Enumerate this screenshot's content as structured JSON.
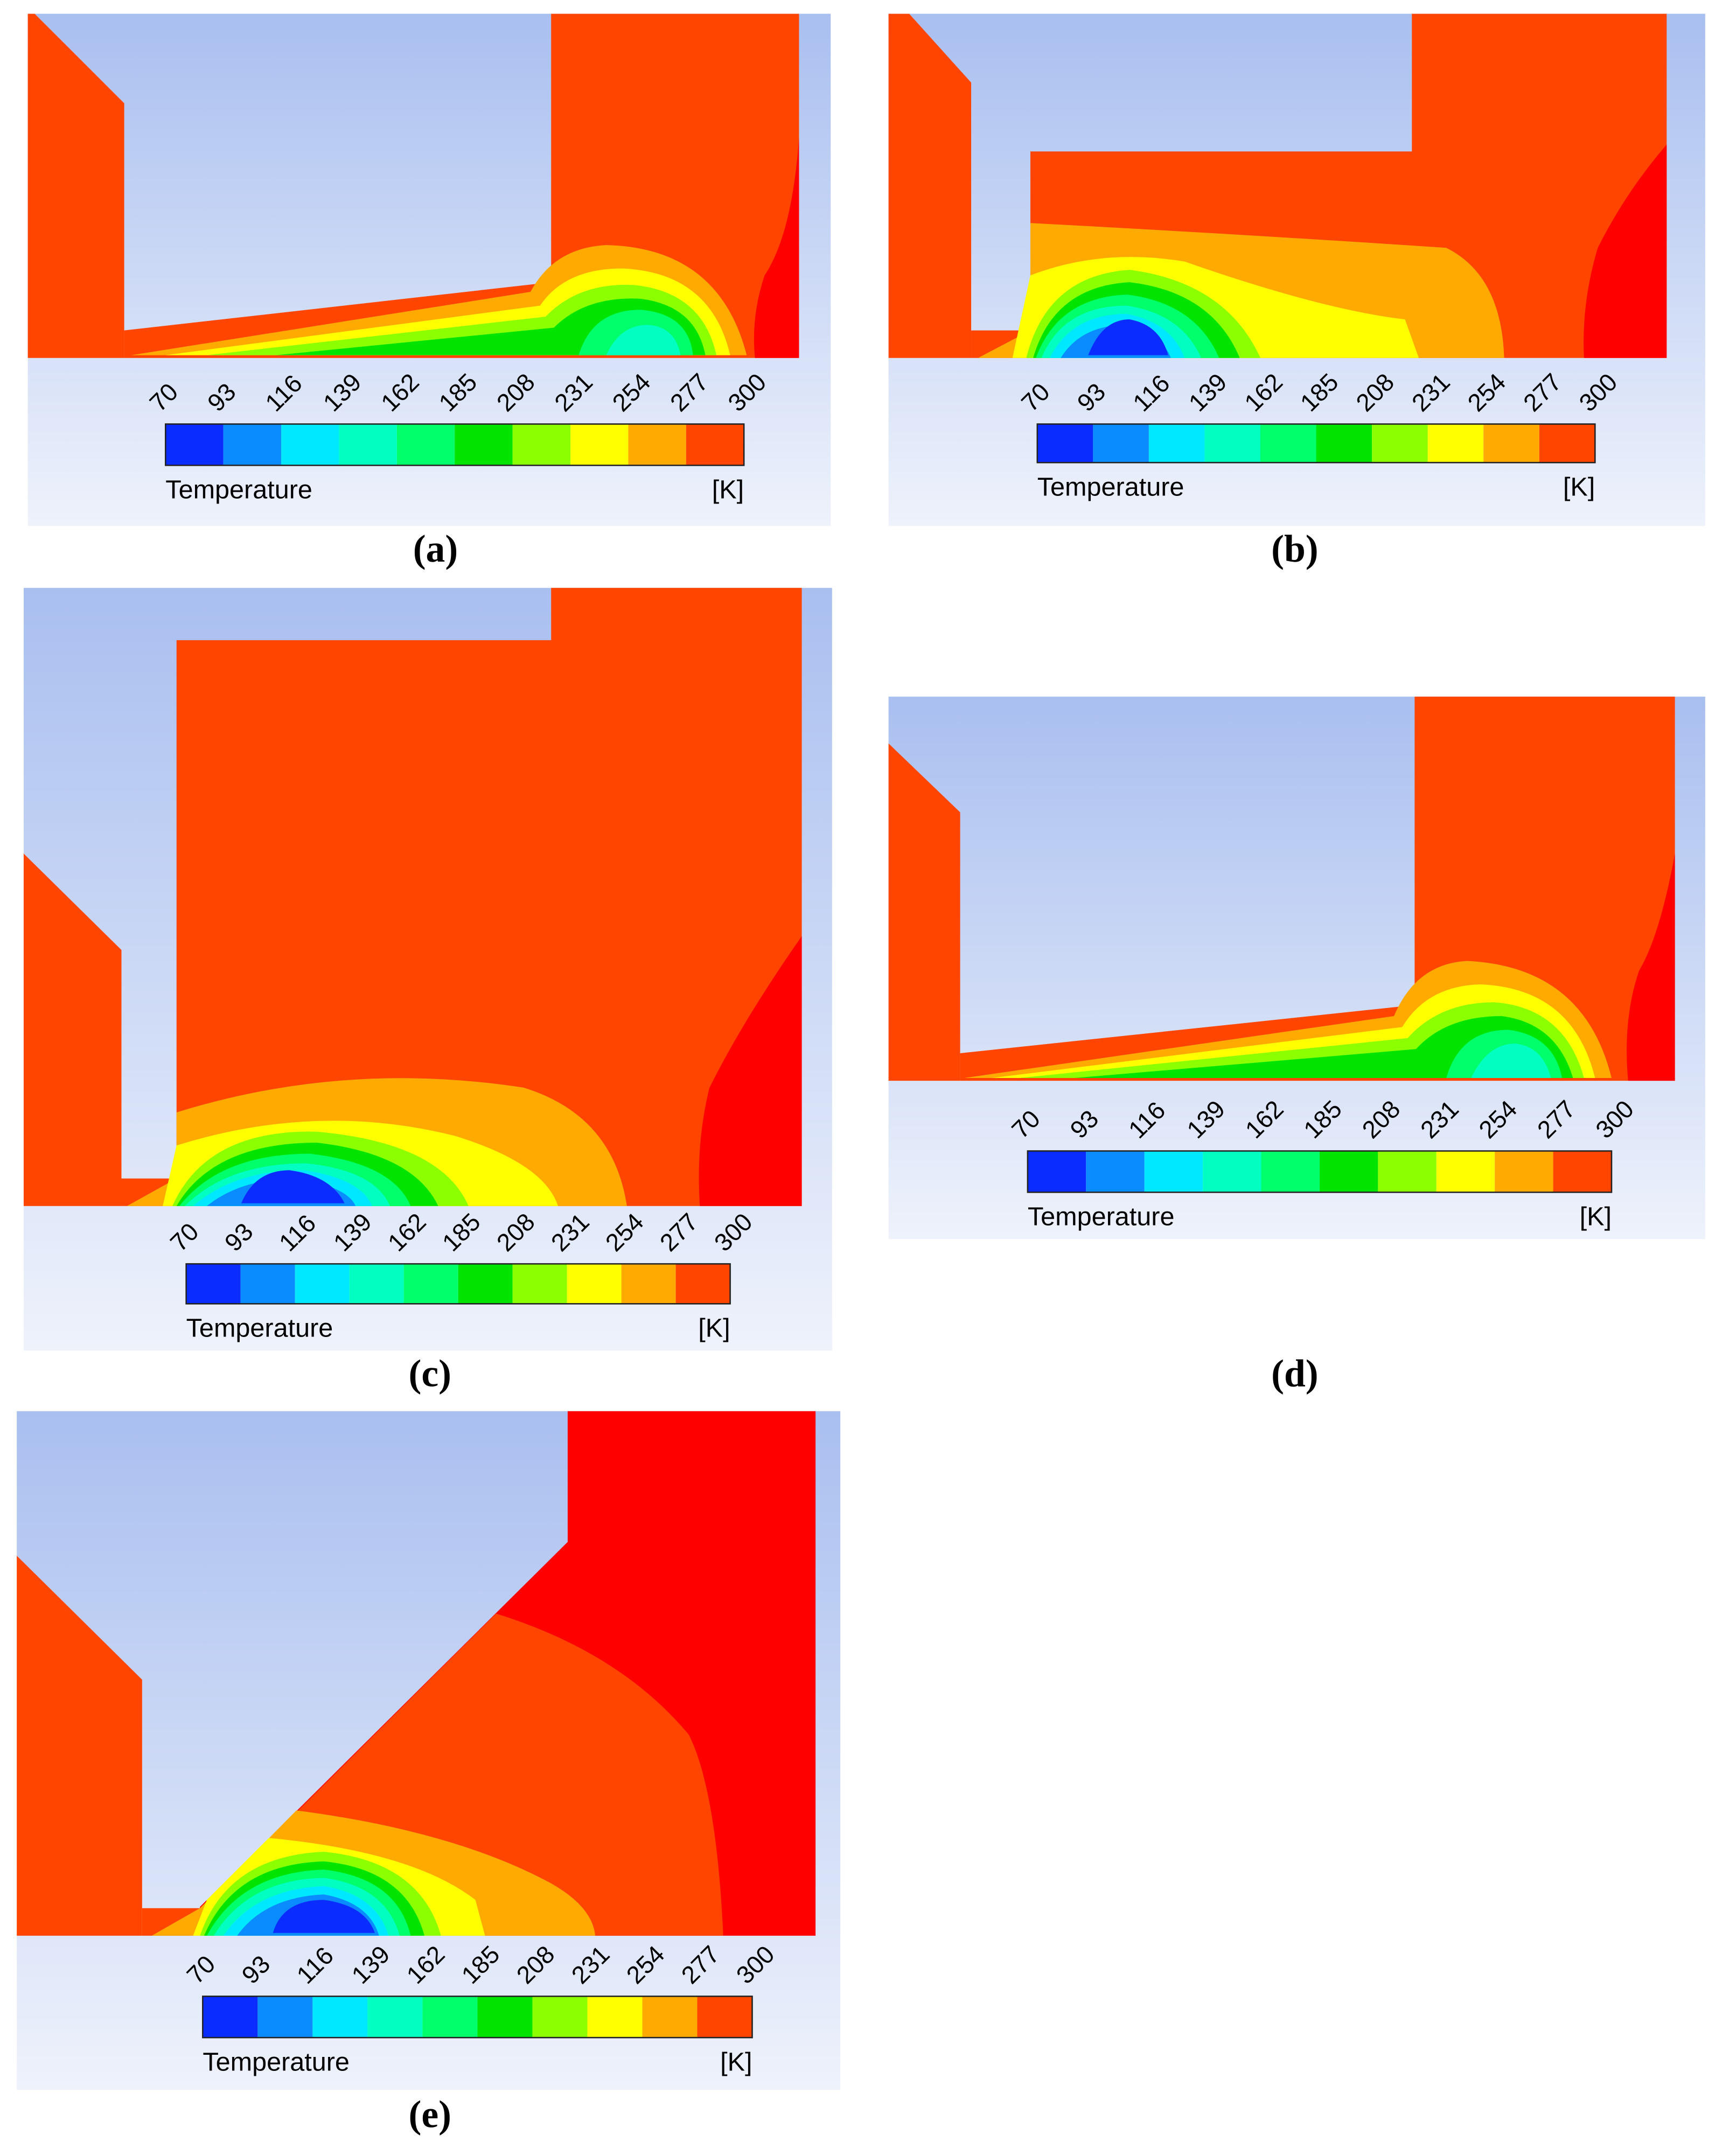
{
  "panels": [
    {
      "label": "(a)",
      "colorbar": {
        "title": "Temperature",
        "unit": "[K]",
        "ticks": [
          70,
          93,
          116,
          139,
          162,
          185,
          208,
          231,
          254,
          277,
          300
        ],
        "colors": [
          "#0b2cff",
          "#0a8cff",
          "#00e8ff",
          "#00ffc0",
          "#00ff6a",
          "#00e400",
          "#8cff00",
          "#ffff00",
          "#ffaa00",
          "#ff4500"
        ]
      }
    },
    {
      "label": "(b)",
      "colorbar": {
        "title": "Temperature",
        "unit": "[K]",
        "ticks": [
          70,
          93,
          116,
          139,
          162,
          185,
          208,
          231,
          254,
          277,
          300
        ],
        "colors": [
          "#0b2cff",
          "#0a8cff",
          "#00e8ff",
          "#00ffc0",
          "#00ff6a",
          "#00e400",
          "#8cff00",
          "#ffff00",
          "#ffaa00",
          "#ff4500"
        ]
      }
    },
    {
      "label": "(c)",
      "colorbar": {
        "title": "Temperature",
        "unit": "[K]",
        "ticks": [
          70,
          93,
          116,
          139,
          162,
          185,
          208,
          231,
          254,
          277,
          300
        ],
        "colors": [
          "#0b2cff",
          "#0a8cff",
          "#00e8ff",
          "#00ffc0",
          "#00ff6a",
          "#00e400",
          "#8cff00",
          "#ffff00",
          "#ffaa00",
          "#ff4500"
        ]
      }
    },
    {
      "label": "(d)",
      "colorbar": {
        "title": "Temperature",
        "unit": "[K]",
        "ticks": [
          70,
          93,
          116,
          139,
          162,
          185,
          208,
          231,
          254,
          277,
          300
        ],
        "colors": [
          "#0b2cff",
          "#0a8cff",
          "#00e8ff",
          "#00ffc0",
          "#00ff6a",
          "#00e400",
          "#8cff00",
          "#ffff00",
          "#ffaa00",
          "#ff4500"
        ]
      }
    },
    {
      "label": "(e)",
      "colorbar": {
        "title": "Temperature",
        "unit": "[K]",
        "ticks": [
          70,
          93,
          116,
          139,
          162,
          185,
          208,
          231,
          254,
          277,
          300
        ],
        "colors": [
          "#0b2cff",
          "#0a8cff",
          "#00e8ff",
          "#00ffc0",
          "#00ff6a",
          "#00e400",
          "#8cff00",
          "#ffff00",
          "#ffaa00",
          "#ff4500"
        ]
      }
    }
  ]
}
